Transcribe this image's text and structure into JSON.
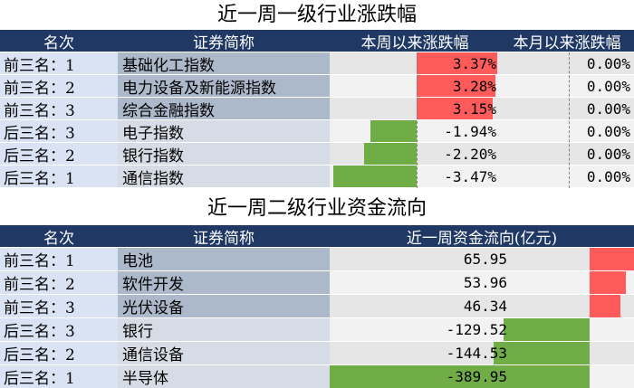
{
  "colors": {
    "header_bg": "#1f3864",
    "positive_bar": "#ff5b5b",
    "negative_bar": "#70ad47"
  },
  "table1": {
    "title": "近一周一级行业涨跌幅",
    "headers": {
      "rank": "名次",
      "name": "证券简称",
      "weekly": "本周以来涨跌幅",
      "monthly": "本月以来涨跌幅"
    },
    "rows": [
      {
        "rank": "前三名：1",
        "name": "基础化工指数",
        "weekly": "3.37%",
        "weekly_value": 3.37,
        "monthly": "0.00%"
      },
      {
        "rank": "前三名：2",
        "name": "电力设备及新能源指数",
        "weekly": "3.28%",
        "weekly_value": 3.28,
        "monthly": "0.00%"
      },
      {
        "rank": "前三名：3",
        "name": "综合金融指数",
        "weekly": "3.15%",
        "weekly_value": 3.15,
        "monthly": "0.00%"
      },
      {
        "rank": "后三名：3",
        "name": "电子指数",
        "weekly": "-1.94%",
        "weekly_value": -1.94,
        "monthly": "0.00%"
      },
      {
        "rank": "后三名：2",
        "name": "银行指数",
        "weekly": "-2.20%",
        "weekly_value": -2.2,
        "monthly": "0.00%"
      },
      {
        "rank": "后三名：1",
        "name": "通信指数",
        "weekly": "-3.47%",
        "weekly_value": -3.47,
        "monthly": "0.00%"
      }
    ]
  },
  "table2": {
    "title": "近一周二级行业资金流向",
    "headers": {
      "rank": "名次",
      "name": "证券简称",
      "flow": "近一周资金流向(亿元)"
    },
    "rows": [
      {
        "rank": "前三名：1",
        "name": "电池",
        "flow": "65.95",
        "flow_value": 65.95
      },
      {
        "rank": "前三名：2",
        "name": "软件开发",
        "flow": "53.96",
        "flow_value": 53.96
      },
      {
        "rank": "前三名：3",
        "name": "光伏设备",
        "flow": "46.34",
        "flow_value": 46.34
      },
      {
        "rank": "后三名：3",
        "name": "银行",
        "flow": "-129.52",
        "flow_value": -129.52
      },
      {
        "rank": "后三名：2",
        "name": "通信设备",
        "flow": "-144.53",
        "flow_value": -144.53
      },
      {
        "rank": "后三名：1",
        "name": "半导体",
        "flow": "-389.95",
        "flow_value": -389.95
      }
    ]
  }
}
